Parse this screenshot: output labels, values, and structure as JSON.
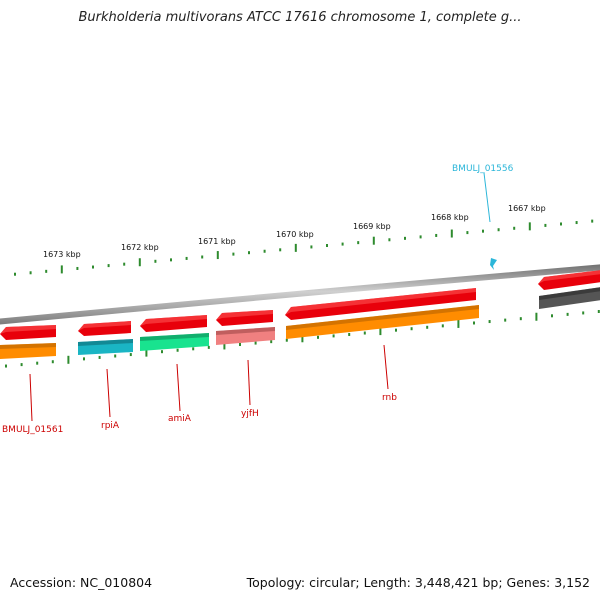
{
  "title": "Burkholderia multivorans ATCC 17616 chromosome 1, complete g...",
  "footer": {
    "accession": "Accession: NC_010804",
    "topology": "Topology: circular; Length: 3,448,421 bp; Genes: 3,152"
  },
  "colors": {
    "backbone": "#8c8c8c",
    "tick": "#2e8b2e",
    "label_red": "#cc0000",
    "label_cyan": "#2bb6d9"
  },
  "scale_labels": [
    "1673 kbp",
    "1672 kbp",
    "1671 kbp",
    "1670 kbp",
    "1669 kbp",
    "1668 kbp",
    "1667 kbp"
  ],
  "genes": [
    {
      "label": "BMULJ_01561",
      "color": "#e8000b",
      "sub_color": "#ff8c00"
    },
    {
      "label": "rpiA",
      "color": "#e8000b",
      "sub_color": "#1ab5c4"
    },
    {
      "label": "amiA",
      "color": "#e8000b",
      "sub_color": "#19e38f"
    },
    {
      "label": "yjfH",
      "color": "#e8000b",
      "sub_color": "#f08080"
    },
    {
      "label": "rnb",
      "color": "#e8000b",
      "sub_color": "#ff8c00"
    },
    {
      "label": "BMULJ_01556",
      "color": "#2bb6d9"
    }
  ],
  "unlabeled_genes": [
    {
      "color": "#e8000b",
      "sub_color": "#555555"
    }
  ]
}
